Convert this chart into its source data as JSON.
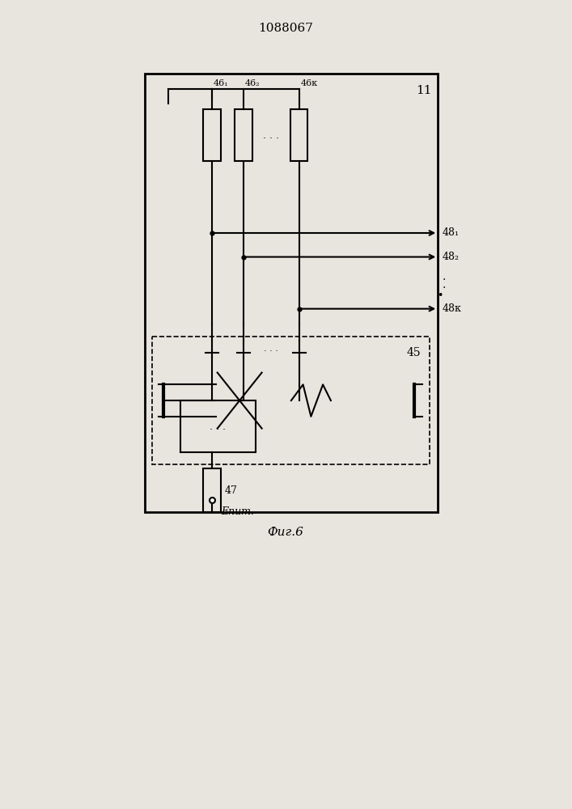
{
  "title": "1088067",
  "fig_label": "Фиг.6",
  "bg_color": "#e8e4de",
  "lw": 1.5,
  "label_11": "11",
  "label_45": "45",
  "label_47": "47",
  "label_461": "46₁",
  "label_462": "46₂",
  "label_46k": "46к",
  "label_out_481": "48₁",
  "label_out_482": "48₂",
  "label_out_48k": "48к",
  "label_epit": "Eпит."
}
